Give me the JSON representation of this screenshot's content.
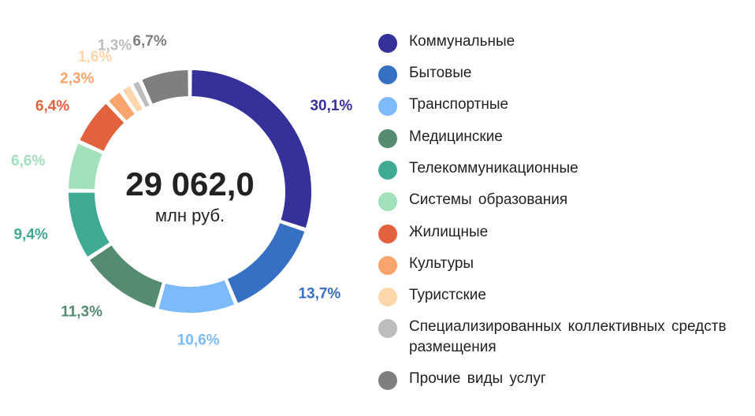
{
  "chart_data": {
    "type": "pie",
    "subtype": "donut",
    "center_value": "29 062,0",
    "center_unit": "млн руб.",
    "slices": [
      {
        "label": "Коммунальные",
        "value": 30.1,
        "pct_label": "30,1%",
        "color": "#35309A"
      },
      {
        "label": "Бытовые",
        "value": 13.7,
        "pct_label": "13,7%",
        "color": "#3670C5"
      },
      {
        "label": "Транспортные",
        "value": 10.6,
        "pct_label": "10,6%",
        "color": "#7DBAFB"
      },
      {
        "label": "Медицинские",
        "value": 11.3,
        "pct_label": "11,3%",
        "color": "#558B70"
      },
      {
        "label": "Телекоммуникационные",
        "value": 9.4,
        "pct_label": "9,4%",
        "color": "#3FAA94"
      },
      {
        "label": "Системы образования",
        "value": 6.6,
        "pct_label": "6,6%",
        "color": "#A2DFBB"
      },
      {
        "label": "Жилищные",
        "value": 6.4,
        "pct_label": "6,4%",
        "color": "#E2623D"
      },
      {
        "label": "Культуры",
        "value": 2.3,
        "pct_label": "2,3%",
        "color": "#F9A46D"
      },
      {
        "label": "Туристские",
        "value": 1.6,
        "pct_label": "1,6%",
        "color": "#FDD6AB"
      },
      {
        "label": "Специализированных коллективных средств размещения",
        "value": 1.3,
        "pct_label": "1,3%",
        "color": "#BDBDBD"
      },
      {
        "label": "Прочие виды услуг",
        "value": 6.7,
        "pct_label": "6,7%",
        "color": "#7F7F7F"
      }
    ],
    "legend_position": "right"
  }
}
